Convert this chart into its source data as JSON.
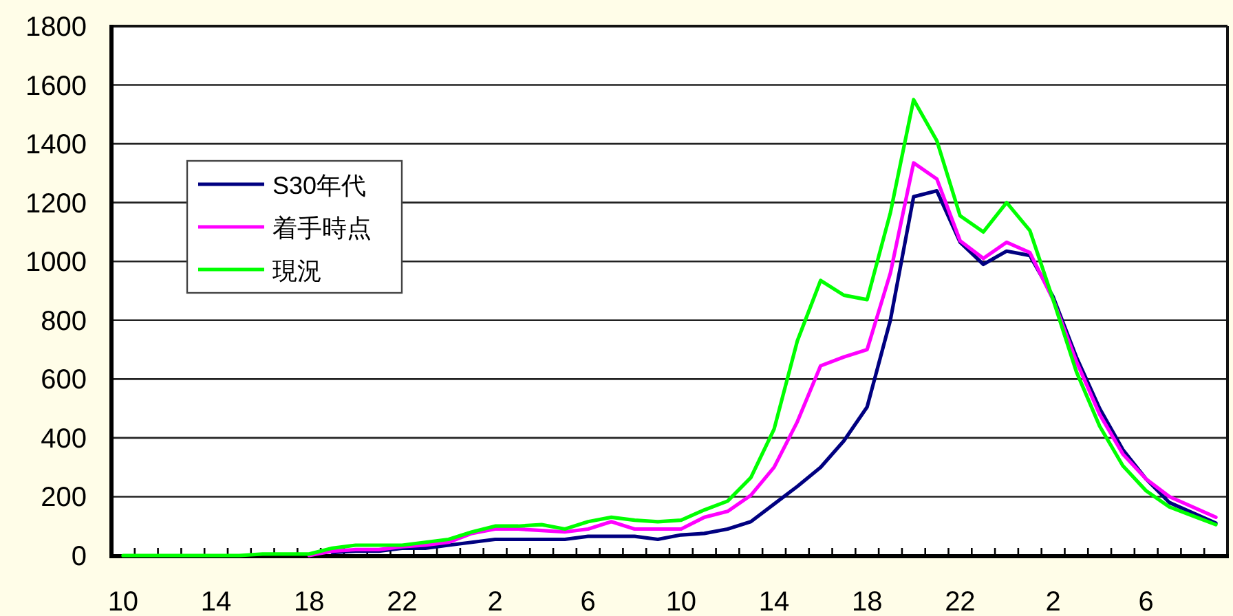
{
  "chart_data": {
    "type": "line",
    "categories": [
      "10",
      null,
      null,
      null,
      "14",
      null,
      null,
      null,
      "18",
      null,
      null,
      null,
      "22",
      null,
      null,
      null,
      "2",
      null,
      null,
      null,
      "6",
      null,
      null,
      null,
      "10",
      null,
      null,
      null,
      "14",
      null,
      null,
      null,
      "18",
      null,
      null,
      null,
      "22",
      null,
      null,
      null,
      "2",
      null,
      null,
      null,
      "6",
      null,
      null,
      null
    ],
    "series": [
      {
        "name": "S30年代",
        "color": "#000080",
        "values": [
          null,
          null,
          null,
          null,
          null,
          null,
          null,
          null,
          null,
          10,
          15,
          15,
          25,
          25,
          35,
          45,
          55,
          55,
          55,
          55,
          65,
          65,
          65,
          55,
          70,
          75,
          90,
          115,
          175,
          235,
          300,
          390,
          505,
          800,
          1220,
          1240,
          1065,
          990,
          1035,
          1020,
          880,
          675,
          500,
          360,
          260,
          180,
          145,
          110
        ]
      },
      {
        "name": "着手時点",
        "color": "#ff00ff",
        "values": [
          null,
          null,
          null,
          null,
          null,
          null,
          null,
          null,
          0,
          15,
          20,
          20,
          30,
          35,
          45,
          75,
          90,
          90,
          85,
          80,
          90,
          115,
          90,
          90,
          90,
          130,
          150,
          205,
          300,
          455,
          645,
          675,
          700,
          960,
          1335,
          1280,
          1070,
          1010,
          1065,
          1030,
          870,
          660,
          480,
          345,
          260,
          200,
          165,
          130
        ]
      },
      {
        "name": "現況",
        "color": "#00ff00",
        "values": [
          0,
          0,
          0,
          0,
          0,
          0,
          5,
          5,
          5,
          25,
          35,
          35,
          35,
          45,
          55,
          80,
          100,
          100,
          105,
          90,
          115,
          130,
          120,
          115,
          120,
          155,
          185,
          265,
          430,
          730,
          935,
          885,
          870,
          1165,
          1550,
          1410,
          1155,
          1100,
          1200,
          1105,
          870,
          625,
          440,
          305,
          220,
          165,
          135,
          105
        ]
      }
    ],
    "ylim": [
      0,
      1800
    ],
    "yticks": [
      0,
      200,
      400,
      600,
      800,
      1000,
      1200,
      1400,
      1600,
      1800
    ],
    "grid": "y",
    "legend": "left"
  }
}
